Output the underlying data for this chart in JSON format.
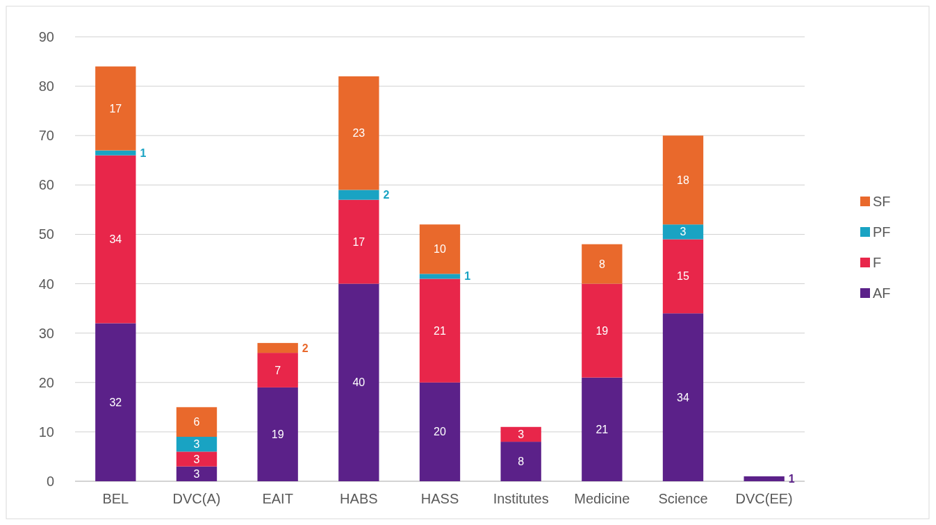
{
  "chart_data": {
    "type": "bar",
    "stacked": true,
    "categories": [
      "BEL",
      "DVC(A)",
      "EAIT",
      "HABS",
      "HASS",
      "Institutes",
      "Medicine",
      "Science",
      "DVC(EE)"
    ],
    "series": [
      {
        "name": "AF",
        "color": "#5b2189",
        "values": [
          32,
          3,
          19,
          40,
          20,
          8,
          21,
          34,
          1
        ]
      },
      {
        "name": "F",
        "color": "#e8264a",
        "values": [
          34,
          3,
          7,
          17,
          21,
          3,
          19,
          15,
          null
        ]
      },
      {
        "name": "PF",
        "color": "#19a3c3",
        "values": [
          1,
          3,
          null,
          2,
          1,
          null,
          null,
          3,
          null
        ]
      },
      {
        "name": "SF",
        "color": "#e9692c",
        "values": [
          17,
          6,
          2,
          23,
          10,
          null,
          8,
          18,
          null
        ]
      }
    ],
    "ylim": [
      0,
      90
    ],
    "yticks": [
      0,
      10,
      20,
      30,
      40,
      50,
      60,
      70,
      80,
      90
    ],
    "grid": "y",
    "legend": "right",
    "data_labels": true
  }
}
